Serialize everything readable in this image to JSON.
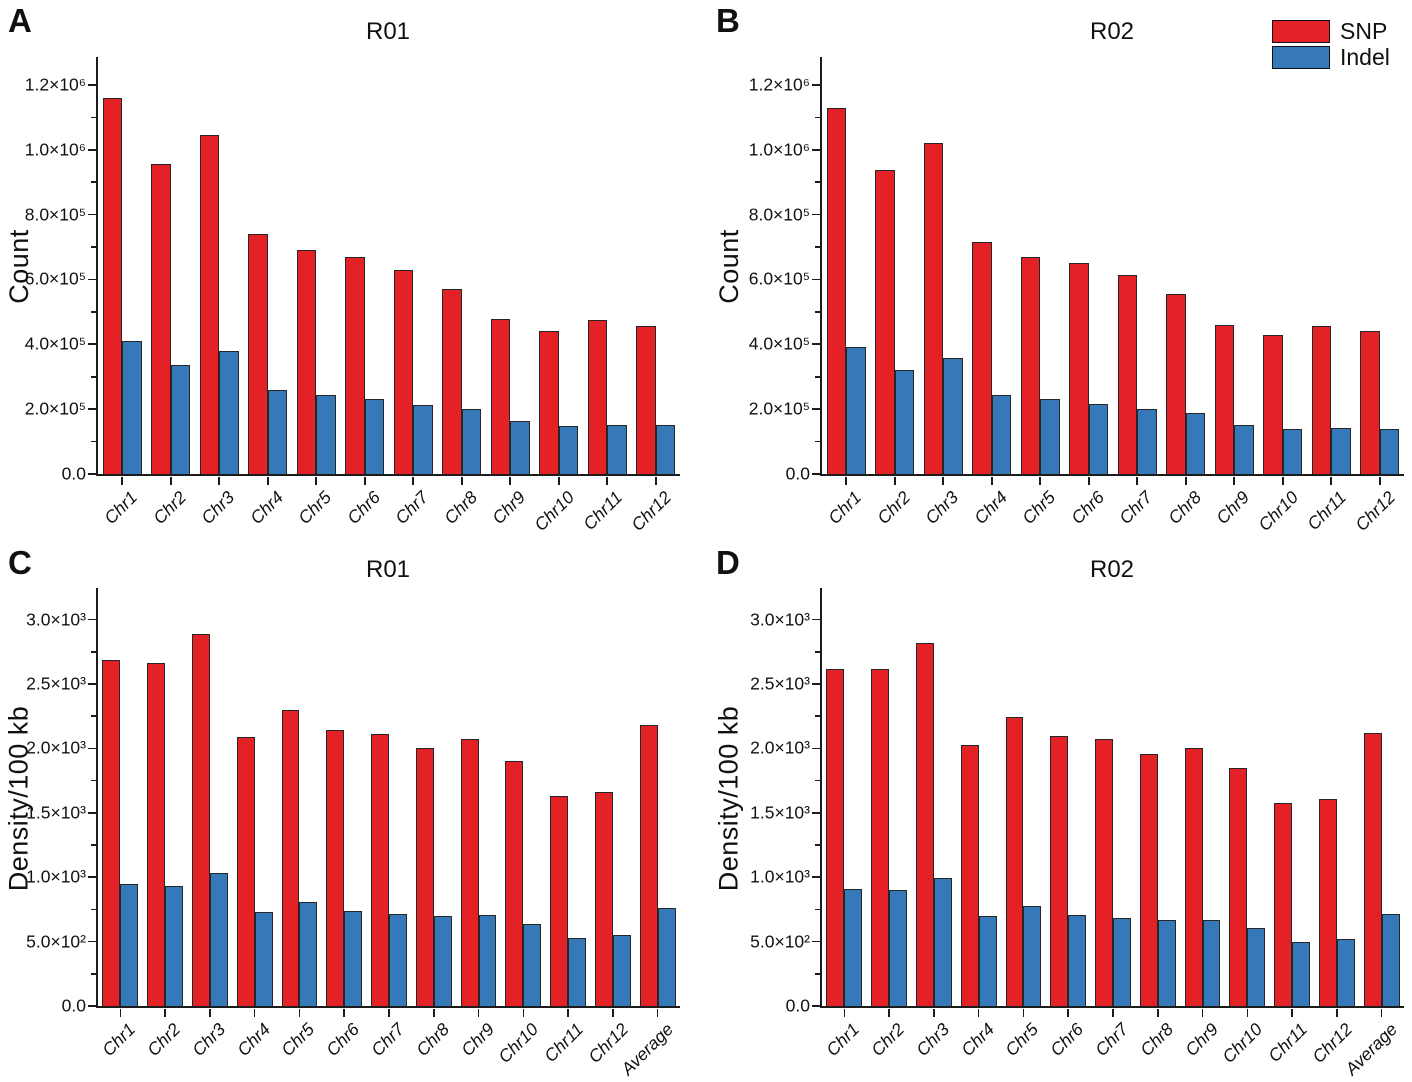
{
  "figure": {
    "background": "#ffffff",
    "legend": {
      "position": "top-right",
      "items": [
        {
          "label": "SNP",
          "color": "#e32127"
        },
        {
          "label": "Indel",
          "color": "#3579b8"
        }
      ]
    },
    "colors": {
      "snp": "#e32127",
      "indel": "#3579b8",
      "bar_border": "#262626",
      "axis": "#1c1c1c"
    }
  },
  "chart_data": [
    {
      "id": "A",
      "panel_letter": "A",
      "type": "bar",
      "title": "R01",
      "xlabel": "",
      "ylabel": "Count",
      "grid": false,
      "categories": [
        "Chr1",
        "Chr2",
        "Chr3",
        "Chr4",
        "Chr5",
        "Chr6",
        "Chr7",
        "Chr8",
        "Chr9",
        "Chr10",
        "Chr11",
        "Chr12"
      ],
      "series": [
        {
          "name": "SNP",
          "color": "#e32127",
          "values": [
            1160000,
            955000,
            1045000,
            740000,
            690000,
            670000,
            630000,
            572000,
            477000,
            442000,
            474000,
            457000
          ]
        },
        {
          "name": "Indel",
          "color": "#3579b8",
          "values": [
            410000,
            335000,
            380000,
            258000,
            244000,
            232000,
            212000,
            199000,
            163000,
            148000,
            152000,
            151000
          ]
        }
      ],
      "ylim": [
        0,
        1286000
      ],
      "yticks": [
        {
          "v": 0,
          "label": "0.0"
        },
        {
          "v": 200000,
          "label": "2.0×10⁵"
        },
        {
          "v": 400000,
          "label": "4.0×10⁵"
        },
        {
          "v": 600000,
          "label": "6.0×10⁵"
        },
        {
          "v": 800000,
          "label": "8.0×10⁵"
        },
        {
          "v": 1000000,
          "label": "1.0×10⁶"
        },
        {
          "v": 1200000,
          "label": "1.2×10⁶"
        }
      ],
      "yminor": [
        100000,
        300000,
        500000,
        700000,
        900000,
        1100000
      ]
    },
    {
      "id": "B",
      "panel_letter": "B",
      "type": "bar",
      "title": "R02",
      "xlabel": "",
      "ylabel": "Count",
      "grid": false,
      "categories": [
        "Chr1",
        "Chr2",
        "Chr3",
        "Chr4",
        "Chr5",
        "Chr6",
        "Chr7",
        "Chr8",
        "Chr9",
        "Chr10",
        "Chr11",
        "Chr12"
      ],
      "series": [
        {
          "name": "SNP",
          "color": "#e32127",
          "values": [
            1128000,
            937000,
            1022000,
            717000,
            668000,
            651000,
            613000,
            555000,
            459000,
            428000,
            455000,
            440000
          ]
        },
        {
          "name": "Indel",
          "color": "#3579b8",
          "values": [
            391000,
            320000,
            358000,
            243000,
            230000,
            217000,
            202000,
            187000,
            151000,
            138000,
            142000,
            139000
          ]
        }
      ],
      "ylim": [
        0,
        1286000
      ],
      "yticks": [
        {
          "v": 0,
          "label": "0.0"
        },
        {
          "v": 200000,
          "label": "2.0×10⁵"
        },
        {
          "v": 400000,
          "label": "4.0×10⁵"
        },
        {
          "v": 600000,
          "label": "6.0×10⁵"
        },
        {
          "v": 800000,
          "label": "8.0×10⁵"
        },
        {
          "v": 1000000,
          "label": "1.0×10⁶"
        },
        {
          "v": 1200000,
          "label": "1.2×10⁶"
        }
      ],
      "yminor": [
        100000,
        300000,
        500000,
        700000,
        900000,
        1100000
      ]
    },
    {
      "id": "C",
      "panel_letter": "C",
      "type": "bar",
      "title": "R01",
      "xlabel": "",
      "ylabel": "Density/100 kb",
      "grid": false,
      "categories": [
        "Chr1",
        "Chr2",
        "Chr3",
        "Chr4",
        "Chr5",
        "Chr6",
        "Chr7",
        "Chr8",
        "Chr9",
        "Chr10",
        "Chr11",
        "Chr12",
        "Average"
      ],
      "series": [
        {
          "name": "SNP",
          "color": "#e32127",
          "values": [
            2690,
            2665,
            2885,
            2085,
            2300,
            2145,
            2115,
            2000,
            2070,
            1905,
            1630,
            1665,
            2180
          ]
        },
        {
          "name": "Indel",
          "color": "#3579b8",
          "values": [
            950,
            935,
            1035,
            730,
            805,
            740,
            715,
            700,
            710,
            640,
            530,
            550,
            760
          ]
        }
      ],
      "ylim": [
        0,
        3245
      ],
      "yticks": [
        {
          "v": 0,
          "label": "0.0"
        },
        {
          "v": 500,
          "label": "5.0×10²"
        },
        {
          "v": 1000,
          "label": "1.0×10³"
        },
        {
          "v": 1500,
          "label": "1.5×10³"
        },
        {
          "v": 2000,
          "label": "2.0×10³"
        },
        {
          "v": 2500,
          "label": "2.5×10³"
        },
        {
          "v": 3000,
          "label": "3.0×10³"
        }
      ],
      "yminor": [
        250,
        750,
        1250,
        1750,
        2250,
        2750
      ]
    },
    {
      "id": "D",
      "panel_letter": "D",
      "type": "bar",
      "title": "R02",
      "xlabel": "",
      "ylabel": "Density/100 kb",
      "grid": false,
      "categories": [
        "Chr1",
        "Chr2",
        "Chr3",
        "Chr4",
        "Chr5",
        "Chr6",
        "Chr7",
        "Chr8",
        "Chr9",
        "Chr10",
        "Chr11",
        "Chr12",
        "Average"
      ],
      "series": [
        {
          "name": "SNP",
          "color": "#e32127",
          "values": [
            2615,
            2620,
            2820,
            2030,
            2245,
            2095,
            2070,
            1960,
            2005,
            1850,
            1575,
            1605,
            2120
          ]
        },
        {
          "name": "Indel",
          "color": "#3579b8",
          "values": [
            910,
            900,
            995,
            695,
            775,
            705,
            680,
            665,
            670,
            605,
            495,
            520,
            715
          ]
        }
      ],
      "ylim": [
        0,
        3245
      ],
      "yticks": [
        {
          "v": 0,
          "label": "0.0"
        },
        {
          "v": 500,
          "label": "5.0×10²"
        },
        {
          "v": 1000,
          "label": "1.0×10³"
        },
        {
          "v": 1500,
          "label": "1.5×10³"
        },
        {
          "v": 2000,
          "label": "2.0×10³"
        },
        {
          "v": 2500,
          "label": "2.5×10³"
        },
        {
          "v": 3000,
          "label": "3.0×10³"
        }
      ],
      "yminor": [
        250,
        750,
        1250,
        1750,
        2250,
        2750
      ]
    }
  ]
}
